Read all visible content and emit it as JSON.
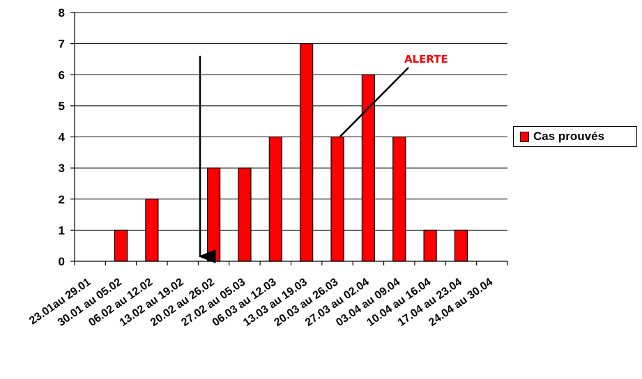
{
  "chart_data": {
    "type": "bar",
    "categories": [
      "23.01au 29.01",
      "30.01 au 05.02",
      "06.02 au 12.02",
      "13.02 au 19.02",
      "20.02 au 26.02",
      "27.02 au 05.03",
      "06.03 au 12.03",
      "13.03 au 19.03",
      "20.03 au 26.03",
      "27.03 au 02.04",
      "03.04 au 09.04",
      "10.04 au 16.04",
      "17.04 au 23.04",
      "24.04 au 30.04"
    ],
    "series": [
      {
        "name": "Cas prouvés",
        "values": [
          0,
          1,
          2,
          0,
          3,
          3,
          4,
          7,
          4,
          6,
          4,
          1,
          1,
          0
        ],
        "color": "#ff0000"
      }
    ],
    "ylim": [
      0,
      8
    ],
    "yticks": [
      "0",
      "1",
      "2",
      "3",
      "4",
      "5",
      "6",
      "7",
      "8"
    ],
    "grid": true,
    "legend": "right",
    "annotations": [
      {
        "text": "ALERTE",
        "color": "#ff0000",
        "points_to_category": "20.03 au 26.03"
      },
      {
        "type": "down-arrow",
        "at_category_boundary": "between 13.02 au 19.02 and 20.02 au 26.02"
      }
    ]
  }
}
